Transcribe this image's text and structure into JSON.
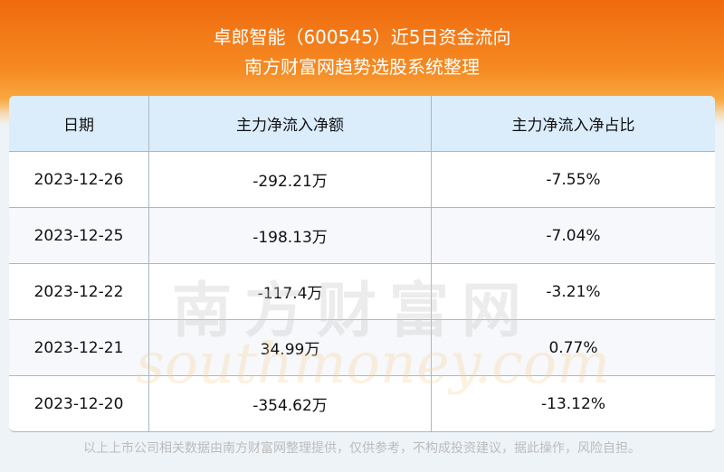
{
  "header": {
    "title": "卓郎智能（600545）近5日资金流向",
    "subtitle": "南方财富网趋势选股系统整理"
  },
  "table": {
    "columns": [
      "日期",
      "主力净流入净额",
      "主力净流入净占比"
    ],
    "rows": [
      [
        "2023-12-26",
        "-292.21万",
        "-7.55%"
      ],
      [
        "2023-12-25",
        "-198.13万",
        "-7.04%"
      ],
      [
        "2023-12-22",
        "-117.4万",
        "-3.21%"
      ],
      [
        "2023-12-21",
        "34.99万",
        "0.77%"
      ],
      [
        "2023-12-20",
        "-354.62万",
        "-13.12%"
      ]
    ]
  },
  "watermark": {
    "cn": "南方财富网",
    "en": "southmoney.com"
  },
  "footer": "以上上市公司相关数据由南方财富网整理提供，仅供参考，不构成投资建议，据此操作，风险自担。",
  "colors": {
    "banner": "#f06a0e",
    "header_row": "#dbecfb"
  }
}
